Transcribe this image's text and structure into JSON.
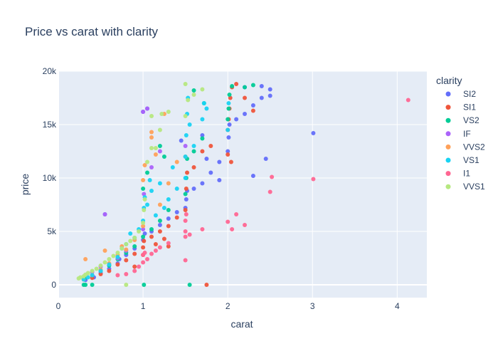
{
  "chart_data": {
    "type": "scatter",
    "title": "Price vs carat with clarity",
    "xlabel": "carat",
    "ylabel": "price",
    "xlim": [
      0,
      4.35
    ],
    "ylim": [
      -1200,
      20000
    ],
    "x_ticks": [
      0,
      1,
      2,
      3,
      4
    ],
    "x_tick_labels": [
      "0",
      "1",
      "2",
      "3",
      "4"
    ],
    "y_ticks": [
      0,
      5000,
      10000,
      15000,
      20000
    ],
    "y_tick_labels": [
      "0",
      "5k",
      "10k",
      "15k",
      "20k"
    ],
    "grid": true,
    "legend": {
      "title": "clarity",
      "placement": "right"
    },
    "colors": {
      "plot_bg": "#e5ecf6",
      "grid": "#ffffff",
      "text": "#2a3f5f"
    },
    "series": [
      {
        "name": "SI2",
        "color": "#636efa",
        "points": [
          [
            0.32,
            450
          ],
          [
            0.42,
            700
          ],
          [
            0.5,
            1100
          ],
          [
            0.6,
            1500
          ],
          [
            0.7,
            2000
          ],
          [
            0.72,
            2400
          ],
          [
            0.8,
            2800
          ],
          [
            0.9,
            3400
          ],
          [
            1.0,
            4200
          ],
          [
            1.02,
            4800
          ],
          [
            1.1,
            5000
          ],
          [
            1.2,
            5600
          ],
          [
            1.3,
            6200
          ],
          [
            1.4,
            6800
          ],
          [
            1.5,
            7200
          ],
          [
            1.51,
            8000
          ],
          [
            1.52,
            8800
          ],
          [
            1.6,
            9000
          ],
          [
            1.7,
            9500
          ],
          [
            1.8,
            10500
          ],
          [
            1.9,
            11500
          ],
          [
            2.0,
            12500
          ],
          [
            2.01,
            13800
          ],
          [
            2.02,
            15000
          ],
          [
            2.1,
            15500
          ],
          [
            2.2,
            16000
          ],
          [
            2.3,
            16800
          ],
          [
            2.4,
            17500
          ],
          [
            2.5,
            17700
          ],
          [
            2.5,
            18300
          ],
          [
            2.4,
            18600
          ],
          [
            2.2,
            18500
          ],
          [
            3.01,
            14200
          ],
          [
            1.0,
            16200
          ],
          [
            1.05,
            16500
          ],
          [
            1.7,
            14000
          ],
          [
            1.75,
            11800
          ],
          [
            0.55,
            6600
          ],
          [
            1.45,
            13500
          ],
          [
            2.3,
            10200
          ],
          [
            2.45,
            11800
          ],
          [
            1.9,
            9800
          ]
        ]
      },
      {
        "name": "SI1",
        "color": "#ef553b",
        "points": [
          [
            0.3,
            500
          ],
          [
            0.4,
            650
          ],
          [
            0.5,
            1000
          ],
          [
            0.6,
            1300
          ],
          [
            0.7,
            1900
          ],
          [
            0.8,
            2300
          ],
          [
            0.9,
            2900
          ],
          [
            1.0,
            3500
          ],
          [
            1.01,
            4100
          ],
          [
            1.1,
            4500
          ],
          [
            1.2,
            5000
          ],
          [
            1.3,
            5500
          ],
          [
            1.4,
            6300
          ],
          [
            1.5,
            7000
          ],
          [
            1.51,
            9000
          ],
          [
            1.52,
            10500
          ],
          [
            1.6,
            11000
          ],
          [
            1.7,
            12500
          ],
          [
            1.8,
            13000
          ],
          [
            2.0,
            14500
          ],
          [
            2.01,
            15500
          ],
          [
            2.02,
            16500
          ],
          [
            2.03,
            17500
          ],
          [
            2.05,
            18500
          ],
          [
            2.1,
            18800
          ],
          [
            2.2,
            17500
          ],
          [
            2.3,
            16300
          ],
          [
            2.04,
            11500
          ],
          [
            2.0,
            12200
          ],
          [
            1.75,
            0
          ],
          [
            0.9,
            1700
          ],
          [
            1.0,
            2800
          ],
          [
            1.15,
            3800
          ],
          [
            1.25,
            4300
          ],
          [
            1.3,
            3600
          ]
        ]
      },
      {
        "name": "VS2",
        "color": "#00cc96",
        "points": [
          [
            0.3,
            0
          ],
          [
            0.32,
            0
          ],
          [
            0.4,
            0
          ],
          [
            0.31,
            600
          ],
          [
            0.4,
            900
          ],
          [
            0.5,
            1300
          ],
          [
            0.6,
            1800
          ],
          [
            0.7,
            2400
          ],
          [
            0.8,
            3000
          ],
          [
            0.9,
            3600
          ],
          [
            1.0,
            4500
          ],
          [
            1.01,
            0
          ],
          [
            1.1,
            5200
          ],
          [
            1.2,
            6000
          ],
          [
            1.3,
            7000
          ],
          [
            1.5,
            8500
          ],
          [
            1.51,
            10000
          ],
          [
            1.52,
            11800
          ],
          [
            1.55,
            0
          ],
          [
            1.6,
            12500
          ],
          [
            1.7,
            13700
          ],
          [
            1.72,
            17000
          ],
          [
            2.0,
            15500
          ],
          [
            2.01,
            16500
          ],
          [
            2.02,
            17800
          ],
          [
            2.05,
            18600
          ],
          [
            2.3,
            18700
          ],
          [
            2.2,
            18500
          ],
          [
            1.0,
            9000
          ],
          [
            1.05,
            10500
          ],
          [
            1.2,
            13000
          ],
          [
            1.25,
            12000
          ],
          [
            1.6,
            18200
          ]
        ]
      },
      {
        "name": "IF",
        "color": "#ab63fa",
        "points": [
          [
            0.4,
            1200
          ],
          [
            0.5,
            1700
          ],
          [
            0.55,
            6600
          ],
          [
            0.7,
            2500
          ],
          [
            0.8,
            3200
          ],
          [
            1.0,
            5200
          ],
          [
            1.0,
            16200
          ],
          [
            1.05,
            16500
          ],
          [
            1.1,
            11000
          ],
          [
            1.2,
            12500
          ],
          [
            1.5,
            13000
          ],
          [
            1.01,
            8500
          ]
        ]
      },
      {
        "name": "VVS2",
        "color": "#ffa15a",
        "points": [
          [
            0.3,
            500
          ],
          [
            0.32,
            2400
          ],
          [
            0.4,
            900
          ],
          [
            0.5,
            1400
          ],
          [
            0.55,
            3200
          ],
          [
            0.6,
            2000
          ],
          [
            0.7,
            2800
          ],
          [
            0.75,
            3600
          ],
          [
            0.8,
            3300
          ],
          [
            0.9,
            4200
          ],
          [
            1.0,
            5500
          ],
          [
            1.02,
            11200
          ],
          [
            1.1,
            14300
          ],
          [
            1.15,
            12200
          ],
          [
            1.2,
            7500
          ],
          [
            1.25,
            16000
          ],
          [
            1.3,
            9500
          ],
          [
            1.4,
            11500
          ],
          [
            1.5,
            12000
          ],
          [
            1.1,
            13800
          ],
          [
            1.0,
            9800
          ]
        ]
      },
      {
        "name": "VS1",
        "color": "#19d3f3",
        "points": [
          [
            0.3,
            500
          ],
          [
            0.35,
            700
          ],
          [
            0.4,
            900
          ],
          [
            0.5,
            1300
          ],
          [
            0.6,
            1900
          ],
          [
            0.7,
            2600
          ],
          [
            0.75,
            3400
          ],
          [
            0.8,
            3800
          ],
          [
            0.9,
            4400
          ],
          [
            0.95,
            5200
          ],
          [
            1.0,
            6000
          ],
          [
            1.01,
            7200
          ],
          [
            1.02,
            8200
          ],
          [
            1.05,
            7500
          ],
          [
            1.1,
            8800
          ],
          [
            1.15,
            6500
          ],
          [
            1.2,
            9500
          ],
          [
            1.3,
            8000
          ],
          [
            1.4,
            9000
          ],
          [
            1.5,
            10000
          ],
          [
            1.5,
            12000
          ],
          [
            1.51,
            14000
          ],
          [
            1.52,
            16000
          ],
          [
            1.53,
            17500
          ],
          [
            1.55,
            15000
          ],
          [
            1.6,
            13000
          ],
          [
            1.7,
            15500
          ],
          [
            1.72,
            17000
          ],
          [
            1.75,
            16500
          ],
          [
            2.01,
            17000
          ],
          [
            2.0,
            14500
          ],
          [
            1.35,
            11000
          ],
          [
            1.25,
            7200
          ],
          [
            0.85,
            4800
          ],
          [
            1.08,
            9800
          ]
        ]
      },
      {
        "name": "I1",
        "color": "#ff6692",
        "points": [
          [
            0.7,
            900
          ],
          [
            0.8,
            1000
          ],
          [
            0.9,
            1300
          ],
          [
            0.95,
            1700
          ],
          [
            1.0,
            2100
          ],
          [
            1.0,
            2800
          ],
          [
            1.05,
            2400
          ],
          [
            1.1,
            2900
          ],
          [
            1.15,
            3200
          ],
          [
            1.2,
            3500
          ],
          [
            1.3,
            3900
          ],
          [
            1.5,
            4500
          ],
          [
            1.5,
            5000
          ],
          [
            1.5,
            6000
          ],
          [
            1.51,
            6600
          ],
          [
            1.5,
            2300
          ],
          [
            1.55,
            4700
          ],
          [
            1.7,
            5200
          ],
          [
            2.0,
            5900
          ],
          [
            2.05,
            5200
          ],
          [
            2.1,
            6600
          ],
          [
            2.2,
            5600
          ],
          [
            2.5,
            8700
          ],
          [
            2.52,
            10100
          ],
          [
            3.01,
            9900
          ],
          [
            4.13,
            17300
          ],
          [
            1.02,
            3000
          ]
        ]
      },
      {
        "name": "VVS1",
        "color": "#b6e880",
        "points": [
          [
            0.24,
            600
          ],
          [
            0.26,
            700
          ],
          [
            0.3,
            800
          ],
          [
            0.32,
            950
          ],
          [
            0.35,
            1100
          ],
          [
            0.4,
            1300
          ],
          [
            0.45,
            1500
          ],
          [
            0.5,
            1800
          ],
          [
            0.55,
            2100
          ],
          [
            0.6,
            2400
          ],
          [
            0.65,
            2700
          ],
          [
            0.7,
            3000
          ],
          [
            0.75,
            3400
          ],
          [
            0.8,
            0
          ],
          [
            0.8,
            3800
          ],
          [
            0.85,
            4100
          ],
          [
            0.9,
            4400
          ],
          [
            0.95,
            5000
          ],
          [
            1.0,
            5800
          ],
          [
            1.01,
            7000
          ],
          [
            1.02,
            8000
          ],
          [
            1.05,
            11500
          ],
          [
            1.1,
            12800
          ],
          [
            1.1,
            15800
          ],
          [
            1.15,
            12800
          ],
          [
            1.2,
            14500
          ],
          [
            1.22,
            16000
          ],
          [
            1.3,
            16200
          ],
          [
            1.5,
            18800
          ],
          [
            1.53,
            17300
          ],
          [
            1.6,
            17800
          ],
          [
            1.7,
            18300
          ],
          [
            1.5,
            15800
          ]
        ]
      }
    ]
  }
}
